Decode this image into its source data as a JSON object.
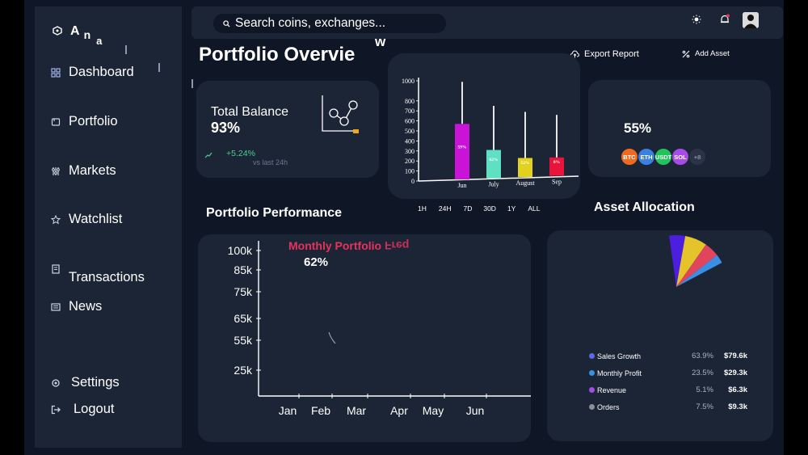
{
  "sidebar": {
    "logo": [
      "A",
      "n",
      "a"
    ],
    "items": [
      {
        "label": "Dashboard",
        "icon": "grid-icon"
      },
      {
        "label": "Portfolio",
        "icon": "folder-icon"
      },
      {
        "label": "Markets",
        "icon": "sliders-icon"
      },
      {
        "label": "Watchlist",
        "icon": "star-icon"
      },
      {
        "label": "Transactions",
        "icon": "receipt-icon"
      },
      {
        "label": "News",
        "icon": "newspaper-icon"
      }
    ],
    "footer": [
      {
        "label": "Settings",
        "icon": "gear-icon"
      },
      {
        "label": "Logout",
        "icon": "logout-icon"
      }
    ]
  },
  "search": {
    "placeholder": "Search coins, exchanges..."
  },
  "header": {
    "title": "Portfolio Overvie",
    "title_tail": "w"
  },
  "actions": {
    "export": "Export Report",
    "add": "Add Asset"
  },
  "balance": {
    "label": "Total Balance",
    "value": "93%",
    "change": "+5.24%",
    "sub": "vs last 24h"
  },
  "candle_chart": {
    "chart_data": {
      "type": "bar",
      "categories": [
        "Jun",
        "July",
        "August",
        "Sep"
      ],
      "values": [
        570,
        310,
        230,
        235
      ],
      "data_labels": [
        "59%",
        "62%",
        "52%",
        "0%"
      ],
      "colors": [
        "#c913d6",
        "#5fe0c2",
        "#e3d21d",
        "#e8143c"
      ],
      "wick_high": [
        990,
        750,
        690,
        660
      ],
      "yticks": [
        0,
        100,
        200,
        300,
        400,
        500,
        600,
        700,
        800,
        1000
      ],
      "ylim": [
        0,
        1000
      ]
    }
  },
  "ranges": [
    "1H",
    "24H",
    "7D",
    "30D",
    "1Y",
    "ALL"
  ],
  "allocation_card": {
    "pct": "55%",
    "coins": [
      {
        "label": "BTC",
        "color": "#ef6a1e"
      },
      {
        "label": "ETH",
        "color": "#3b7fe0"
      },
      {
        "label": "USDT",
        "color": "#21c45a"
      },
      {
        "label": "SOL",
        "color": "#a64ae8"
      },
      {
        "label": "+8",
        "color": "#2a3446"
      }
    ]
  },
  "performance": {
    "section_title": "Portfolio Performance",
    "chart_title": "Monthly Portfolio",
    "chart_title_flipped": "Freq",
    "pct": "62%",
    "chart_data": {
      "type": "line",
      "x": [
        "Jan",
        "Feb",
        "Mar",
        "Apr",
        "May",
        "Jun"
      ],
      "yticks": [
        "25k",
        "55k",
        "65k",
        "75k",
        "85k",
        "100k"
      ],
      "series": []
    }
  },
  "allocation": {
    "section_title": "Asset Allocation",
    "chart_data": {
      "type": "pie",
      "slices": [
        {
          "color": "#4b1ee0"
        },
        {
          "color": "#e5c32a"
        },
        {
          "color": "#e0455d"
        },
        {
          "color": "#3b8fe3"
        }
      ]
    },
    "legend": [
      {
        "name": "Sales Growth",
        "pct": "63.9%",
        "amount": "$79.6k",
        "color": "#5b6ae6"
      },
      {
        "name": "Monthly Profit",
        "pct": "23.5%",
        "amount": "$29.3k",
        "color": "#3b8fe3"
      },
      {
        "name": "Revenue",
        "pct": "5.1%",
        "amount": "$6.3k",
        "color": "#a64ae8"
      },
      {
        "name": "Orders",
        "pct": "7.5%",
        "amount": "$9.3k",
        "color": "#8a8f99"
      }
    ]
  }
}
